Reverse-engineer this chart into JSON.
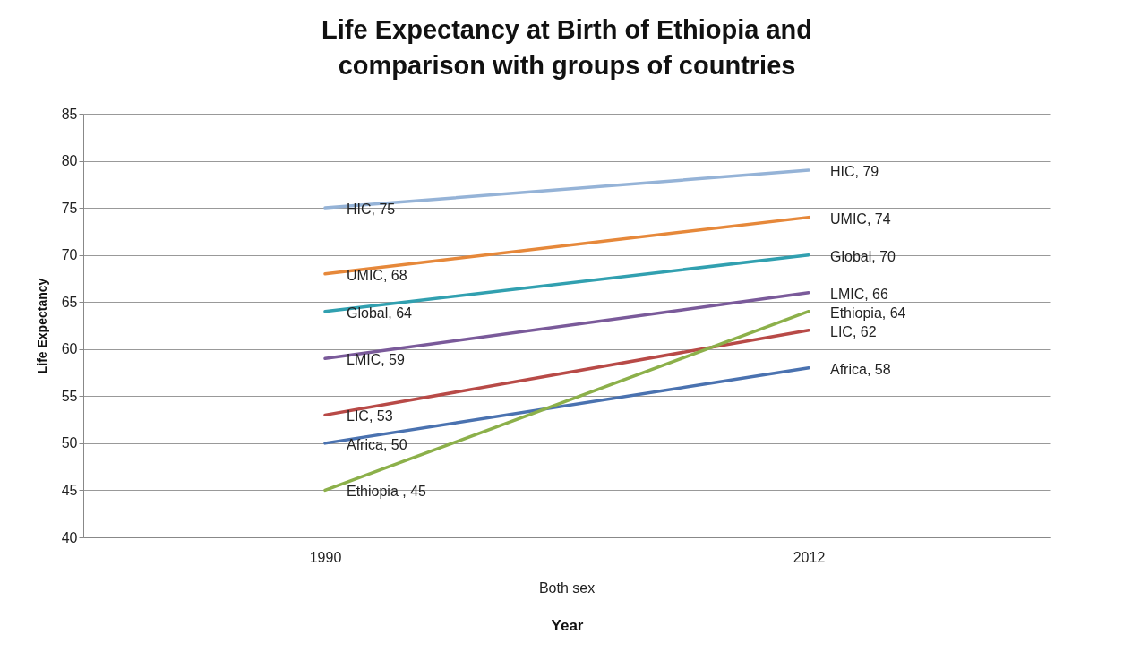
{
  "chart_data": {
    "type": "line",
    "title": "Life Expectancy at Birth of Ethiopia and comparison with groups of countries",
    "xlabel": "Year",
    "ylabel": "Life Expectancy",
    "annotations": [
      "Both sex"
    ],
    "categories": [
      "1990",
      "2012"
    ],
    "ylim": [
      40,
      85
    ],
    "yticks": [
      40,
      45,
      50,
      55,
      60,
      65,
      70,
      75,
      80,
      85
    ],
    "grid": "y",
    "legend": false,
    "marker": "none",
    "series": [
      {
        "color": "#95b3d7",
        "values": [
          75,
          79
        ],
        "value_labels": [
          "HIC, 75",
          "HIC, 79"
        ]
      },
      {
        "color": "#e6883a",
        "values": [
          68,
          74
        ],
        "value_labels": [
          "UMIC, 68",
          "UMIC, 74"
        ]
      },
      {
        "color": "#31a0b0",
        "values": [
          64,
          70
        ],
        "value_labels": [
          "Global, 64",
          "Global, 70"
        ]
      },
      {
        "color": "#7a5a9a",
        "values": [
          59,
          66
        ],
        "value_labels": [
          "LMIC, 59",
          "LMIC, 66"
        ]
      },
      {
        "color": "#b84a47",
        "values": [
          53,
          62
        ],
        "value_labels": [
          "LIC, 53",
          "LIC, 62"
        ]
      },
      {
        "color": "#4a72b0",
        "values": [
          50,
          58
        ],
        "value_labels": [
          "Africa, 50",
          "Africa, 58"
        ]
      },
      {
        "color": "#8cb04a",
        "values": [
          45,
          64
        ],
        "value_labels": [
          "Ethiopia , 45",
          "Ethiopia, 64"
        ]
      }
    ]
  }
}
